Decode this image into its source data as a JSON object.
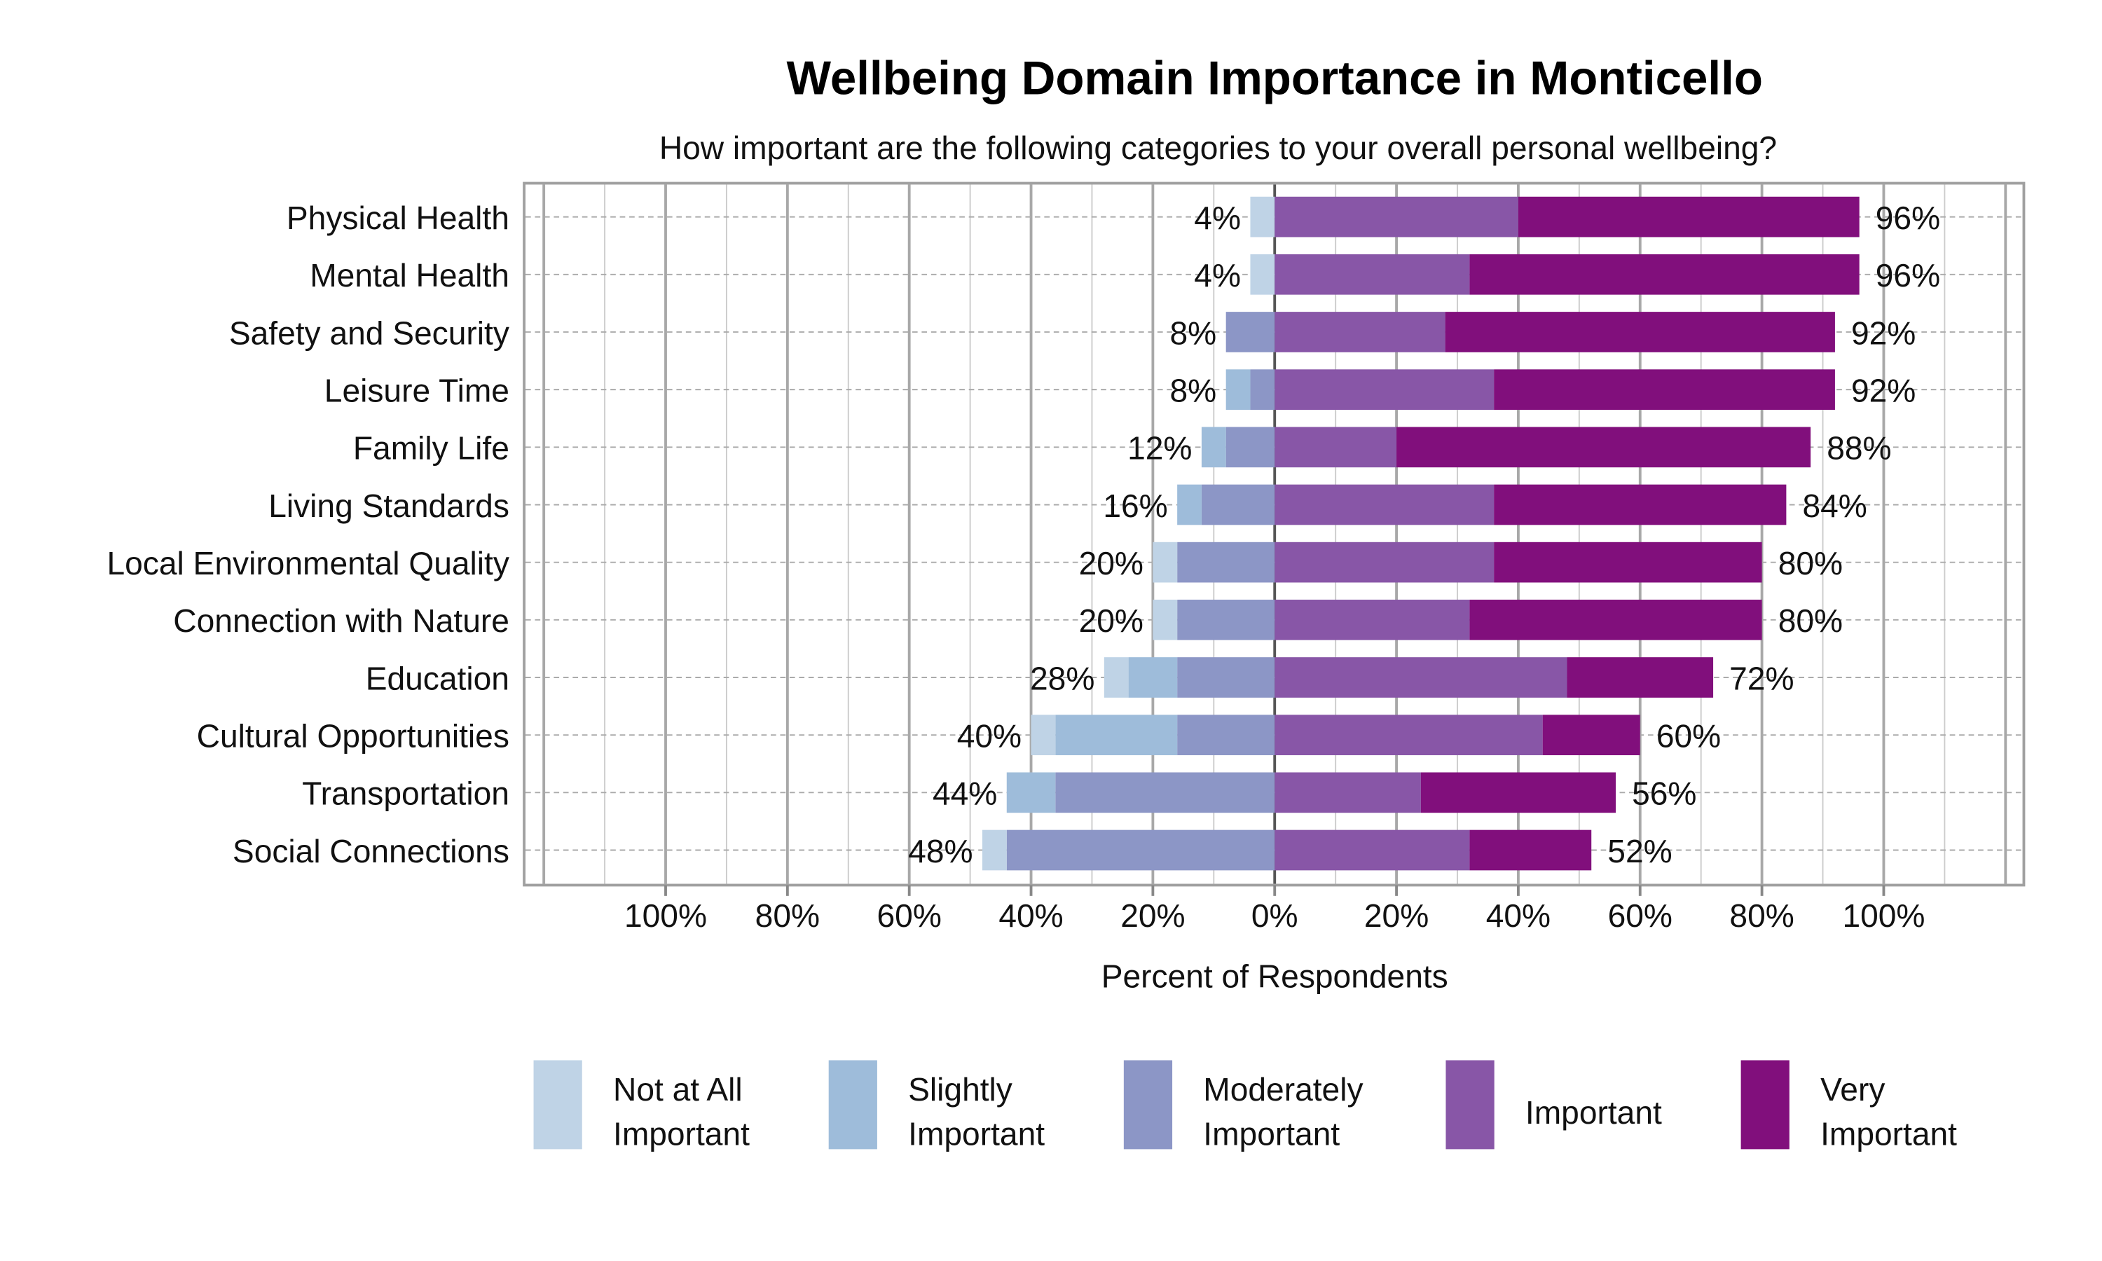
{
  "chart_data": {
    "type": "bar",
    "orientation": "horizontal",
    "stacked": "diverging",
    "title": "Wellbeing Domain Importance in Monticello",
    "subtitle": "How important are the following categories to your overall personal wellbeing?",
    "xlabel": "Percent of Respondents",
    "ylabel": "",
    "xlim": [
      -100,
      100
    ],
    "x_ticks": [
      "100%",
      "80%",
      "60%",
      "40%",
      "20%",
      "0%",
      "20%",
      "40%",
      "60%",
      "80%",
      "100%"
    ],
    "grid": true,
    "legend_position": "bottom",
    "categories": [
      "Physical Health",
      "Mental Health",
      "Safety and Security",
      "Leisure Time",
      "Family Life",
      "Living Standards",
      "Local Environmental Quality",
      "Connection with Nature",
      "Education",
      "Cultural Opportunities",
      "Transportation",
      "Social Connections"
    ],
    "series": [
      {
        "name": "Not at All Important",
        "legend_lines": [
          "Not at All",
          "Important"
        ],
        "side": "negative",
        "color": "#bfd3e6",
        "values": [
          4,
          4,
          0,
          0,
          0,
          0,
          4,
          4,
          4,
          4,
          0,
          4
        ]
      },
      {
        "name": "Slightly Important",
        "legend_lines": [
          "Slightly",
          "Important"
        ],
        "side": "negative",
        "color": "#9ebcda",
        "values": [
          0,
          0,
          0,
          4,
          4,
          4,
          0,
          0,
          8,
          20,
          8,
          0
        ]
      },
      {
        "name": "Moderately Important",
        "legend_lines": [
          "Moderately",
          "Important"
        ],
        "side": "negative",
        "color": "#8c96c6",
        "values": [
          0,
          0,
          8,
          4,
          8,
          12,
          16,
          16,
          16,
          16,
          36,
          44
        ]
      },
      {
        "name": "Important",
        "legend_lines": [
          "Important"
        ],
        "side": "positive",
        "color": "#8856a7",
        "values": [
          40,
          32,
          28,
          36,
          20,
          36,
          36,
          32,
          48,
          44,
          24,
          32
        ]
      },
      {
        "name": "Very Important",
        "legend_lines": [
          "Very",
          "Important"
        ],
        "side": "positive",
        "color": "#810f7c",
        "values": [
          56,
          64,
          64,
          56,
          68,
          48,
          44,
          48,
          24,
          16,
          32,
          20
        ]
      }
    ],
    "negative_totals": [
      "4%",
      "4%",
      "8%",
      "8%",
      "12%",
      "16%",
      "20%",
      "20%",
      "28%",
      "40%",
      "44%",
      "48%"
    ],
    "positive_totals": [
      "96%",
      "96%",
      "92%",
      "92%",
      "88%",
      "84%",
      "80%",
      "80%",
      "72%",
      "60%",
      "56%",
      "52%"
    ]
  }
}
